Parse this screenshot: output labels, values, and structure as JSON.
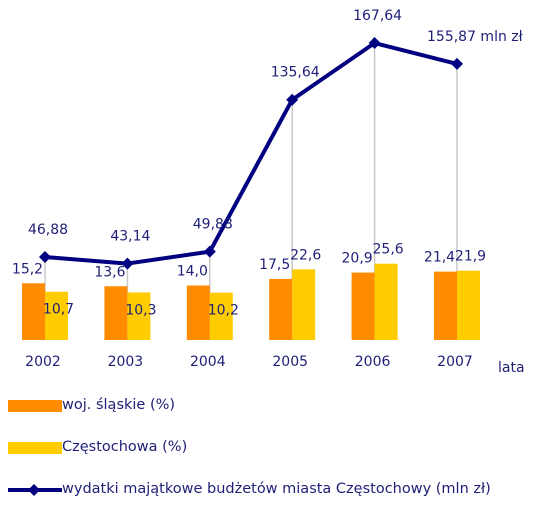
{
  "chart_data": {
    "type": "bar_line",
    "x_label": "lata",
    "categories": [
      "2002",
      "2003",
      "2004",
      "2005",
      "2006",
      "2007"
    ],
    "ylim": [
      -15,
      150
    ],
    "y2lim": [
      0,
      175
    ],
    "legend": "bottom",
    "series": [
      {
        "name": "woj. śląskie (%)",
        "type": "bar",
        "color": "#ff8c00",
        "values": [
          15.2,
          13.6,
          14.0,
          17.5,
          20.9,
          21.4
        ],
        "value_labels": [
          "15,2",
          "13,6",
          "14,0",
          "17,5",
          "20,9",
          "21,4"
        ]
      },
      {
        "name": "Częstochowa (%)",
        "type": "bar",
        "color": "#ffcc00",
        "values": [
          10.7,
          10.3,
          10.2,
          22.6,
          25.6,
          21.9
        ],
        "value_labels": [
          "10,7",
          "10,3",
          "10,2",
          "22,6",
          "25,6",
          "21,9"
        ]
      },
      {
        "name": "wydatki majątkowe budżetów miasta Częstochowy (mln zł)",
        "type": "line",
        "axis": "y2",
        "color": "#000080",
        "values": [
          46.88,
          43.14,
          49.88,
          135.64,
          167.64,
          155.87
        ],
        "value_labels": [
          "46,88",
          "43,14",
          "49,88",
          "135,64",
          "167,64",
          "155,87 mln zł"
        ]
      }
    ]
  }
}
